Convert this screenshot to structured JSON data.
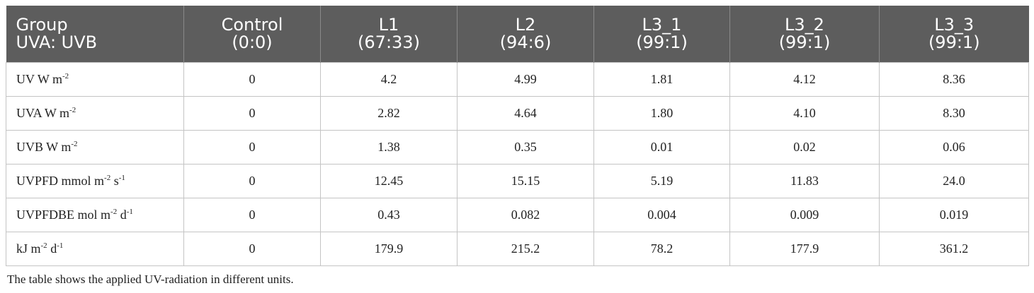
{
  "table": {
    "columns": [
      {
        "line1": "Group",
        "line2": "UVA: UVB"
      },
      {
        "line1": "Control",
        "line2": "(0:0)"
      },
      {
        "line1": "L1",
        "line2": "(67:33)"
      },
      {
        "line1": "L2",
        "line2": "(94:6)"
      },
      {
        "line1": "L3_1",
        "line2": "(99:1)"
      },
      {
        "line1": "L3_2",
        "line2": "(99:1)"
      },
      {
        "line1": "L3_3",
        "line2": "(99:1)"
      }
    ],
    "rows": [
      {
        "label": {
          "a": "UV W m",
          "a_sup": "-2"
        },
        "values": [
          "0",
          "4.2",
          "4.99",
          "1.81",
          "4.12",
          "8.36"
        ]
      },
      {
        "label": {
          "a": "UVA W m",
          "a_sup": "-2"
        },
        "values": [
          "0",
          "2.82",
          "4.64",
          "1.80",
          "4.10",
          "8.30"
        ]
      },
      {
        "label": {
          "a": "UVB W m",
          "a_sup": "-2"
        },
        "values": [
          "0",
          "1.38",
          "0.35",
          "0.01",
          "0.02",
          "0.06"
        ]
      },
      {
        "label": {
          "a": "UVPFD mmol m",
          "a_sup": "-2",
          "b": " s",
          "b_sup": "-1"
        },
        "values": [
          "0",
          "12.45",
          "15.15",
          "5.19",
          "11.83",
          "24.0"
        ]
      },
      {
        "label": {
          "a": "UVPFDBE mol m",
          "a_sup": "-2",
          "b": " d",
          "b_sup": "-1"
        },
        "values": [
          "0",
          "0.43",
          "0.082",
          "0.004",
          "0.009",
          "0.019"
        ]
      },
      {
        "label": {
          "a": "kJ m",
          "a_sup": "-2",
          "b": " d",
          "b_sup": "-1"
        },
        "values": [
          "0",
          "179.9",
          "215.2",
          "78.2",
          "177.9",
          "361.2"
        ]
      }
    ]
  },
  "caption": "The table shows the applied UV-radiation in different units."
}
